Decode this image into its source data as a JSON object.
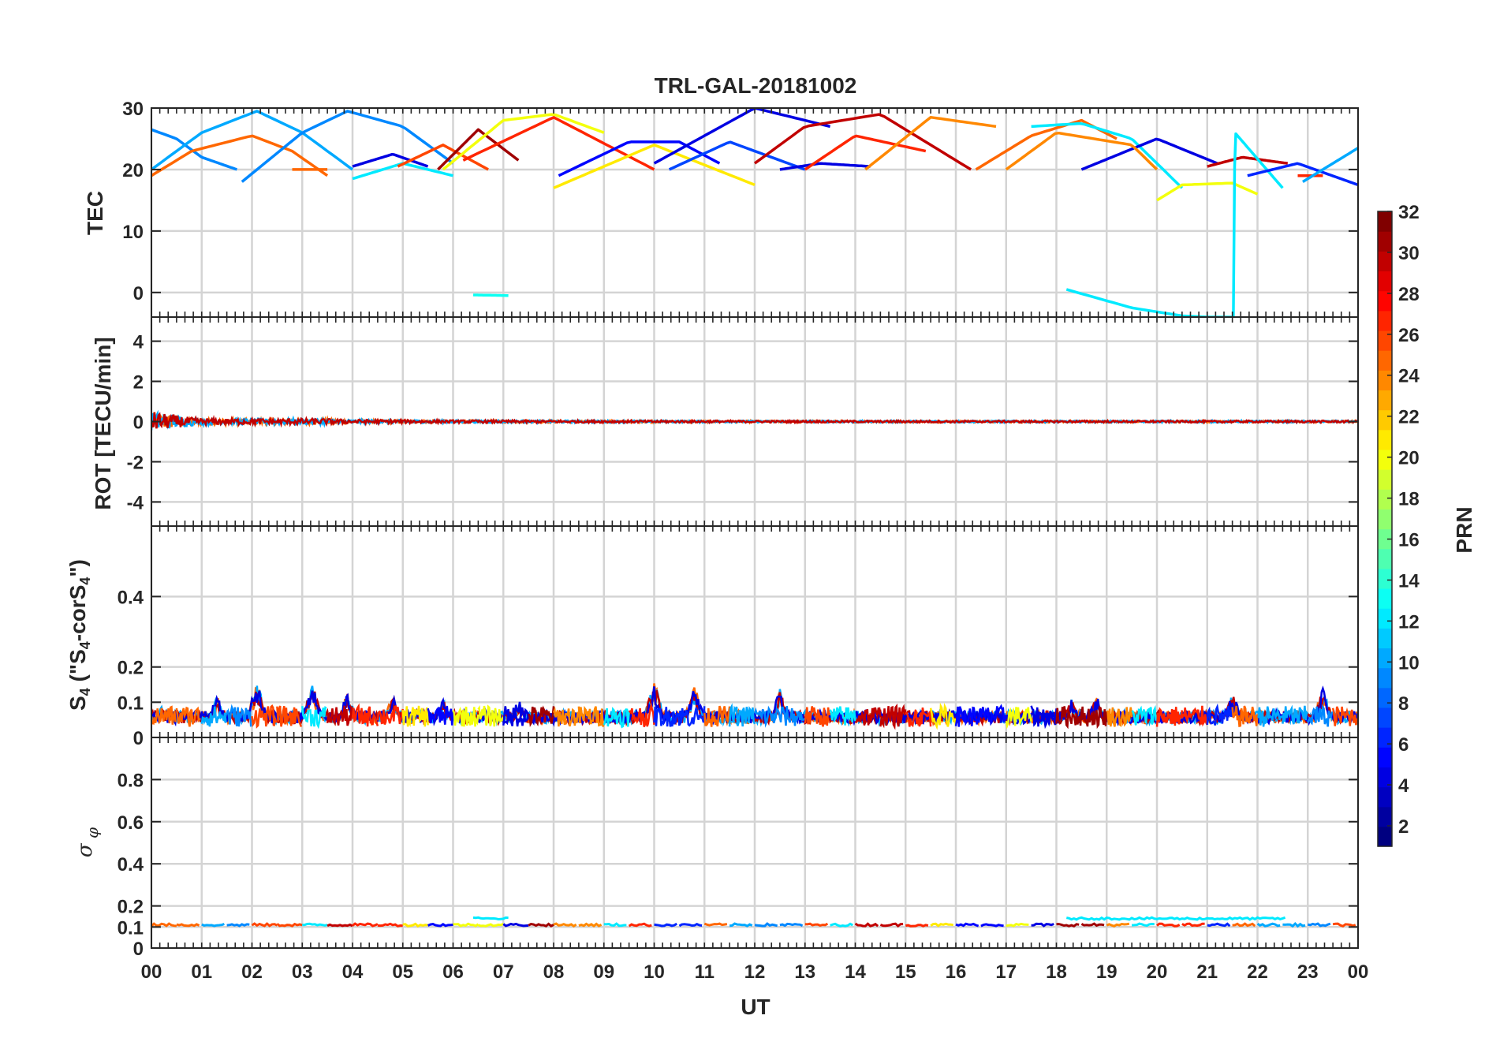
{
  "figure_title": "TRL-GAL-20181002",
  "x_axis": {
    "label": "UT",
    "range": [
      0,
      24
    ],
    "tick_labels": [
      "00",
      "01",
      "02",
      "03",
      "04",
      "05",
      "06",
      "07",
      "08",
      "09",
      "10",
      "11",
      "12",
      "13",
      "14",
      "15",
      "16",
      "17",
      "18",
      "19",
      "20",
      "21",
      "22",
      "23",
      "00"
    ]
  },
  "colorbar": {
    "label": "PRN",
    "range": [
      1,
      32
    ],
    "tick_values": [
      2,
      4,
      6,
      8,
      10,
      12,
      14,
      16,
      18,
      20,
      22,
      24,
      26,
      28,
      30,
      32
    ],
    "tick_labels": [
      "2",
      "4",
      "6",
      "8",
      "10",
      "12",
      "14",
      "16",
      "18",
      "20",
      "22",
      "24",
      "26",
      "28",
      "30",
      "32"
    ],
    "colormap": "jet"
  },
  "chart_data": [
    {
      "type": "line",
      "panel": "TEC",
      "ylabel": "TEC",
      "ylim": [
        -4,
        30
      ],
      "y_ticks": [
        0,
        10,
        20,
        30
      ],
      "y_tick_labels": [
        "0",
        "10",
        "20",
        "30"
      ],
      "grid": true,
      "series": [
        {
          "prn": 9,
          "x": [
            0.0,
            0.5,
            1.0,
            1.7
          ],
          "y": [
            26.5,
            25,
            22,
            20
          ]
        },
        {
          "prn": 25,
          "x": [
            0.0,
            0.8,
            2.0,
            2.8,
            3.5
          ],
          "y": [
            19,
            23,
            25.5,
            23,
            19
          ]
        },
        {
          "prn": 10,
          "x": [
            0.0,
            1.0,
            2.1,
            3.0,
            4.0
          ],
          "y": [
            20,
            26,
            29.5,
            26,
            20
          ]
        },
        {
          "prn": 9,
          "x": [
            1.8,
            3.0,
            3.9,
            5.0,
            6.0
          ],
          "y": [
            18,
            26,
            29.5,
            27,
            21
          ]
        },
        {
          "prn": 25,
          "x": [
            2.8,
            3.5
          ],
          "y": [
            20,
            20
          ]
        },
        {
          "prn": 4,
          "x": [
            4.0,
            4.8,
            5.5
          ],
          "y": [
            20.5,
            22.5,
            20.5
          ]
        },
        {
          "prn": 12,
          "x": [
            4.0,
            5.0,
            6.0
          ],
          "y": [
            18.5,
            21,
            19
          ]
        },
        {
          "prn": 26,
          "x": [
            4.9,
            5.8,
            6.7
          ],
          "y": [
            20.5,
            24,
            20
          ]
        },
        {
          "prn": 31,
          "x": [
            5.7,
            6.5,
            7.3
          ],
          "y": [
            20,
            26.5,
            21.5
          ]
        },
        {
          "prn": 20,
          "x": [
            5.8,
            7.0,
            8.0,
            9.0
          ],
          "y": [
            20,
            28,
            29,
            26
          ]
        },
        {
          "prn": 27,
          "x": [
            6.2,
            8.0,
            10.0
          ],
          "y": [
            21.5,
            28.5,
            20
          ]
        },
        {
          "prn": 13,
          "x": [
            6.4,
            7.1
          ],
          "y": [
            -0.4,
            -0.5
          ]
        },
        {
          "prn": 5,
          "x": [
            8.1,
            9.5,
            10.5,
            11.3
          ],
          "y": [
            19,
            24.5,
            24.5,
            21
          ]
        },
        {
          "prn": 21,
          "x": [
            8.0,
            10.0,
            12.0
          ],
          "y": [
            17,
            24,
            17.5
          ]
        },
        {
          "prn": 7,
          "x": [
            10.3,
            11.5,
            13.0
          ],
          "y": [
            20,
            24.5,
            20
          ]
        },
        {
          "prn": 4,
          "x": [
            10.0,
            12.0,
            13.5
          ],
          "y": [
            21,
            30,
            27
          ]
        },
        {
          "prn": 30,
          "x": [
            12.0,
            13.0,
            14.5,
            16.3
          ],
          "y": [
            21,
            27,
            29,
            20
          ]
        },
        {
          "prn": 4,
          "x": [
            12.5,
            13.3,
            14.3
          ],
          "y": [
            20,
            21,
            20.5
          ]
        },
        {
          "prn": 27,
          "x": [
            13.0,
            14.0,
            15.4
          ],
          "y": [
            20,
            25.5,
            23
          ]
        },
        {
          "prn": 24,
          "x": [
            14.2,
            15.5,
            16.8
          ],
          "y": [
            20,
            28.5,
            27
          ]
        },
        {
          "prn": 25,
          "x": [
            16.4,
            17.5,
            18.5,
            19.2
          ],
          "y": [
            20,
            25.5,
            28,
            25
          ]
        },
        {
          "prn": 12,
          "x": [
            17.5,
            18.5,
            19.5,
            20.5
          ],
          "y": [
            27,
            27.5,
            25,
            17
          ]
        },
        {
          "prn": 4,
          "x": [
            18.5,
            20.0,
            21.2
          ],
          "y": [
            20,
            25,
            21
          ]
        },
        {
          "prn": 24,
          "x": [
            17.0,
            18.0,
            19.5,
            20.0
          ],
          "y": [
            20,
            26,
            24,
            20
          ]
        },
        {
          "prn": 20,
          "x": [
            20.0,
            20.5,
            21.5,
            22.0
          ],
          "y": [
            15,
            17.5,
            17.8,
            16
          ]
        },
        {
          "prn": 30,
          "x": [
            21.0,
            21.7,
            22.6
          ],
          "y": [
            20.5,
            22,
            21
          ]
        },
        {
          "prn": 12,
          "x": [
            18.2,
            19.5,
            20.5,
            21.0,
            21.5
          ],
          "y": [
            0.5,
            -2.5,
            -3.8,
            -4.0,
            -4.0
          ]
        },
        {
          "prn": 12,
          "x": [
            21.52,
            21.55,
            22.5
          ],
          "y": [
            -4.0,
            26,
            17
          ]
        },
        {
          "prn": 6,
          "x": [
            21.8,
            22.8,
            24.0
          ],
          "y": [
            19,
            21,
            17.5
          ]
        },
        {
          "prn": 27,
          "x": [
            22.8,
            23.3
          ],
          "y": [
            19,
            19
          ]
        },
        {
          "prn": 10,
          "x": [
            22.9,
            24.0
          ],
          "y": [
            18,
            23.5
          ]
        }
      ]
    },
    {
      "type": "line",
      "panel": "ROT",
      "ylabel": "ROT [TECU/min]",
      "ylim": [
        -5.2,
        5.2
      ],
      "y_ticks": [
        -4,
        -2,
        0,
        2,
        4
      ],
      "y_tick_labels": [
        "-4",
        "-2",
        "0",
        "2",
        "4"
      ],
      "grid": true,
      "noise_profile": {
        "hours": [
          0,
          0.5,
          1,
          3.3,
          4,
          6,
          12,
          24
        ],
        "amplitude": [
          0.5,
          0.3,
          0.15,
          0.15,
          0.1,
          0.07,
          0.05,
          0.05
        ]
      }
    },
    {
      "type": "line",
      "panel": "S4",
      "ylabel": "S4 (\"S4-corS4\")",
      "ylim": [
        0,
        0.6
      ],
      "y_ticks": [
        0,
        0.1,
        0.2,
        0.4
      ],
      "y_tick_labels": [
        "0",
        "0.1",
        "0.2",
        "0.4"
      ],
      "grid": true,
      "baseline": 0.04,
      "peaks": [
        {
          "x": 0.2,
          "y": 0.1
        },
        {
          "x": 1.3,
          "y": 0.13
        },
        {
          "x": 2.1,
          "y": 0.17
        },
        {
          "x": 3.2,
          "y": 0.17
        },
        {
          "x": 3.9,
          "y": 0.14
        },
        {
          "x": 4.8,
          "y": 0.13
        },
        {
          "x": 5.8,
          "y": 0.12
        },
        {
          "x": 7.3,
          "y": 0.12
        },
        {
          "x": 10.0,
          "y": 0.17
        },
        {
          "x": 10.8,
          "y": 0.16
        },
        {
          "x": 12.5,
          "y": 0.15
        },
        {
          "x": 18.3,
          "y": 0.12
        },
        {
          "x": 18.8,
          "y": 0.13
        },
        {
          "x": 21.5,
          "y": 0.14
        },
        {
          "x": 23.3,
          "y": 0.15
        }
      ]
    },
    {
      "type": "line",
      "panel": "sigma_phi",
      "ylabel": "σ_φ",
      "ylim": [
        0,
        1
      ],
      "y_ticks": [
        0,
        0.1,
        0.2,
        0.4,
        0.6,
        0.8
      ],
      "y_tick_labels": [
        "0",
        "0.1",
        "0.2",
        "0.4",
        "0.6",
        "0.8"
      ],
      "grid": true,
      "baseline": 0.11,
      "elevated_segments": [
        {
          "prn": 12,
          "x": [
            6.4,
            7.1
          ],
          "y": 0.14
        },
        {
          "prn": 12,
          "x": [
            18.2,
            22.6
          ],
          "y": 0.14
        }
      ]
    }
  ]
}
